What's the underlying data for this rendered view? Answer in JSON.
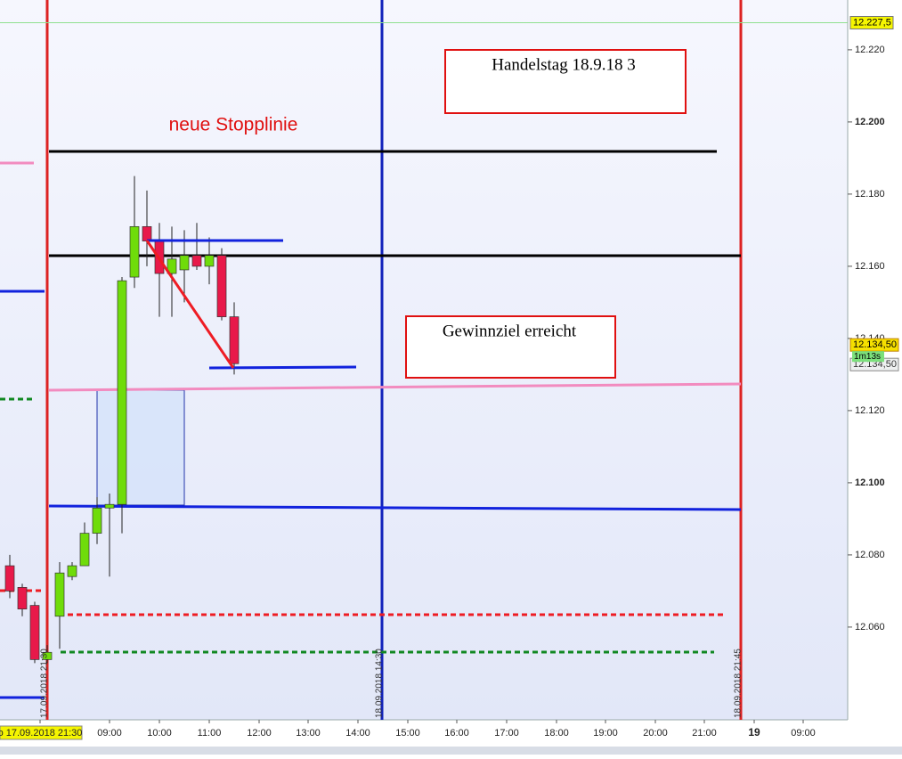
{
  "chart_data": {
    "type": "candlestick",
    "categories": [
      null,
      null,
      null,
      null,
      null,
      null,
      null,
      null,
      null,
      null,
      null,
      null,
      null,
      null,
      null,
      null,
      null,
      null,
      null
    ],
    "series": {
      "open": [
        12077,
        12071,
        12066,
        12051,
        12063,
        12074,
        12077,
        12086,
        12093,
        12094,
        12157,
        12171,
        12167,
        12158,
        12159,
        12163,
        12160,
        12163,
        12146
      ],
      "high": [
        12080,
        12072,
        12067,
        12055,
        12078,
        12078,
        12089,
        12096,
        12097,
        12157,
        12185,
        12181,
        12172,
        12171,
        12170,
        12172,
        12168,
        12165,
        12150
      ],
      "low": [
        12068,
        12063,
        12050,
        12050,
        12054,
        12073,
        12077,
        12083,
        12074,
        12086,
        12154,
        12160,
        12146,
        12146,
        12150,
        12159,
        12155,
        12145,
        12130
      ],
      "close": [
        12070,
        12065,
        12051,
        12053,
        12075,
        12077,
        12086,
        12093,
        12094,
        12156,
        12171,
        12167,
        12158,
        12162,
        12163,
        12160,
        12163,
        12146,
        12133
      ]
    },
    "up_color": "#6fdc0a",
    "down_color": "#e8194a",
    "ylim": [
      12034.3,
      12233.8
    ],
    "yticks": [
      {
        "value": 12060,
        "label": "12.060"
      },
      {
        "value": 12080,
        "label": "12.080"
      },
      {
        "value": 12100,
        "label": "12.100"
      },
      {
        "value": 12120,
        "label": "12.120"
      },
      {
        "value": 12140,
        "label": "12.140"
      },
      {
        "value": 12160,
        "label": "12.160"
      },
      {
        "value": 12180,
        "label": "12.180"
      },
      {
        "value": 12200,
        "label": "12.200"
      },
      {
        "value": 12220,
        "label": "12.220"
      }
    ],
    "xtick_labels": [
      "o 17.09.2018 21:30",
      "09:00",
      "10:00",
      "11:00",
      "12:00",
      "13:00",
      "14:00",
      "15:00",
      "16:00",
      "17:00",
      "18:00",
      "19:00",
      "20:00",
      "21:00",
      "19",
      "09:00"
    ],
    "price_tags": [
      {
        "value": 12227.5,
        "label": "12.227,5"
      },
      {
        "value": 12134.5,
        "label": "12.134,50"
      },
      {
        "value": 12134.5,
        "label": "12.134,50"
      }
    ],
    "countdown": "1m13s",
    "annotations": [
      "neue Stopplinie",
      "Handelstag 18.9.18  3",
      "Gewinnziel erreicht"
    ],
    "vertical_labels": [
      "17.09.2018 21:30",
      "18.09.2018 14:30",
      "18.09.2018 21:45"
    ]
  }
}
